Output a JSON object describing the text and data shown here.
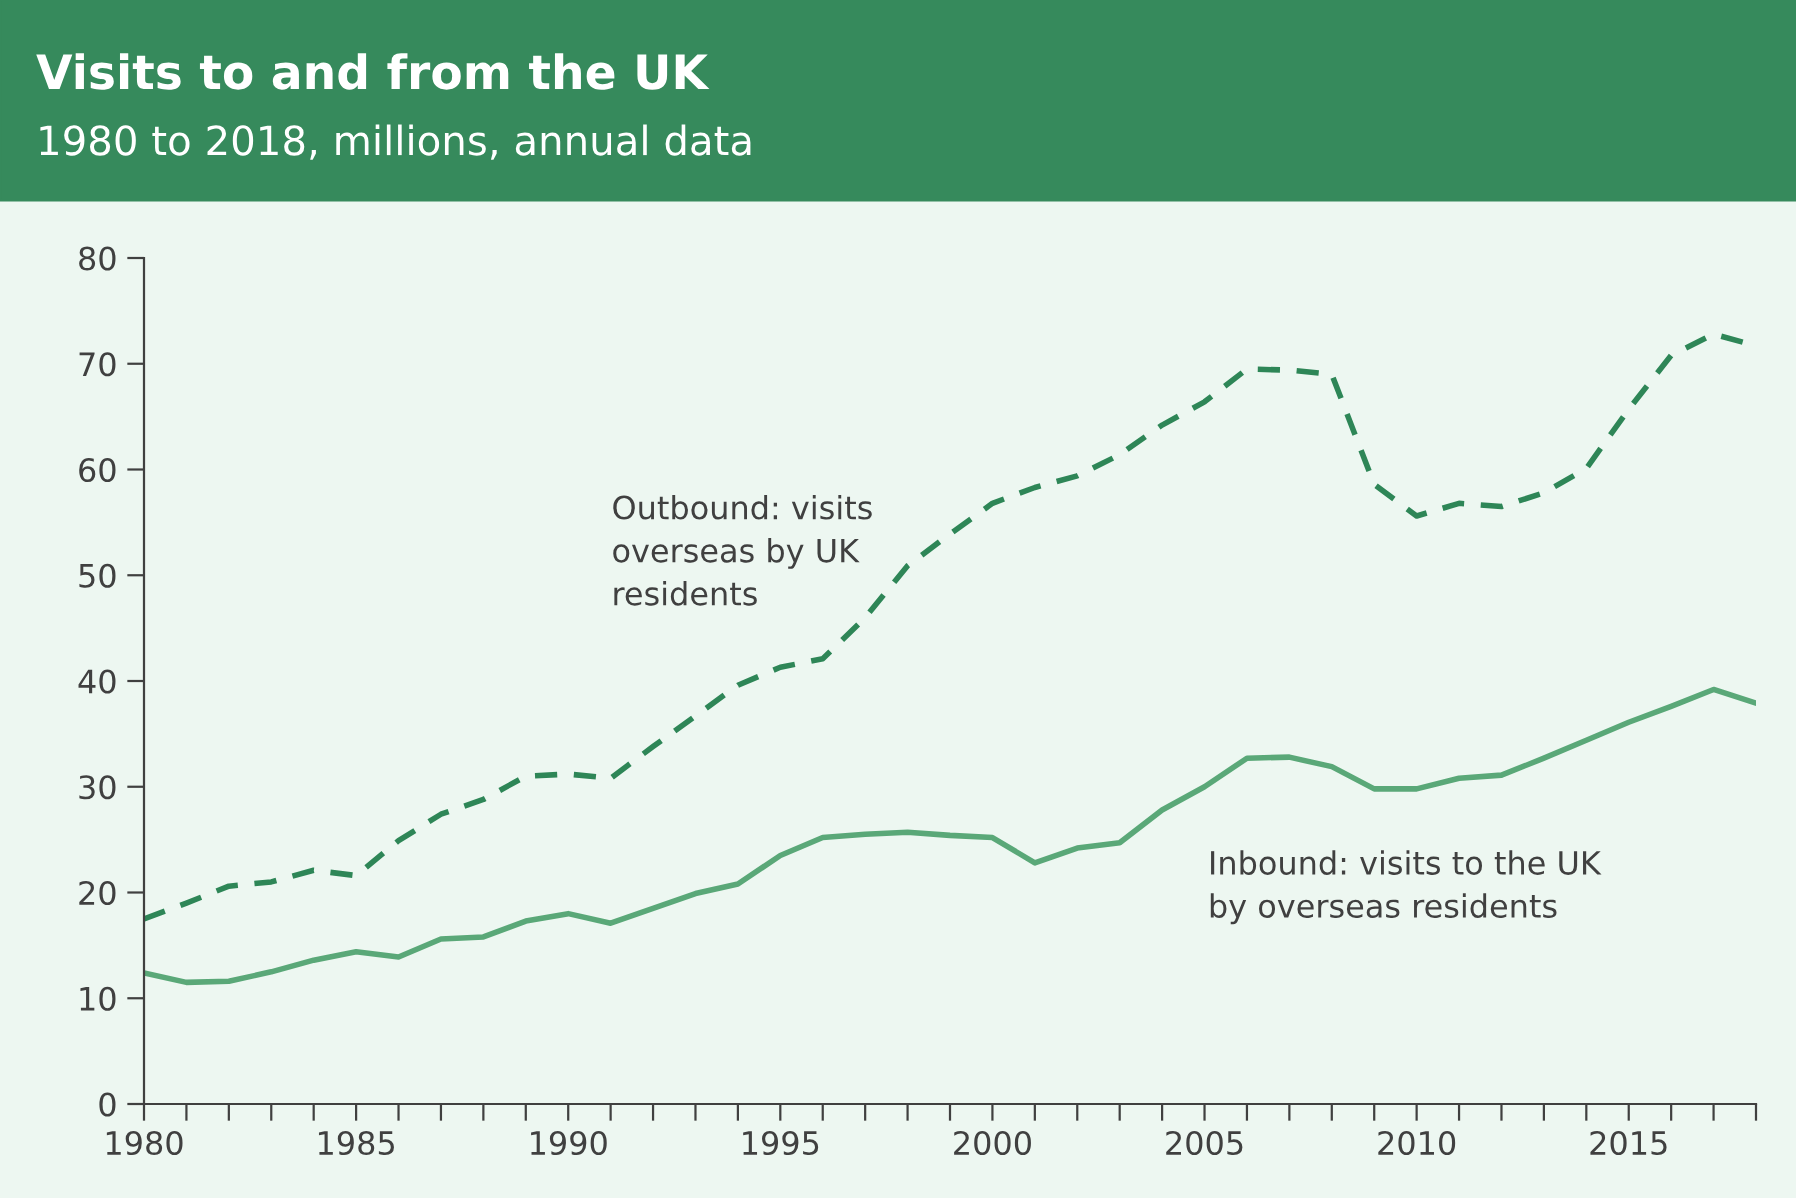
{
  "chart_data": {
    "type": "line",
    "title": "Visits to and from the UK",
    "subtitle": "1980 to 2018, millions, annual data",
    "x": [
      1980,
      1981,
      1982,
      1983,
      1984,
      1985,
      1986,
      1987,
      1988,
      1989,
      1990,
      1991,
      1992,
      1993,
      1994,
      1995,
      1996,
      1997,
      1998,
      1999,
      2000,
      2001,
      2002,
      2003,
      2004,
      2005,
      2006,
      2007,
      2008,
      2009,
      2010,
      2011,
      2012,
      2013,
      2014,
      2015,
      2016,
      2017,
      2018
    ],
    "series": [
      {
        "name": "Outbound: visits\noverseas by UK\nresidents",
        "color": "#2e8657",
        "line_style": "dashed",
        "values": [
          17.5,
          19.0,
          20.6,
          21.0,
          22.1,
          21.6,
          24.9,
          27.4,
          28.8,
          31.0,
          31.2,
          30.8,
          33.8,
          36.7,
          39.6,
          41.3,
          42.1,
          46.0,
          50.9,
          53.9,
          56.8,
          58.3,
          59.4,
          61.4,
          64.2,
          66.4,
          69.5,
          69.4,
          69.0,
          58.6,
          55.6,
          56.8,
          56.5,
          57.8,
          60.1,
          65.7,
          70.8,
          72.8,
          71.7
        ]
      },
      {
        "name": "Inbound: visits to the UK\nby overseas residents",
        "color": "#5aa878",
        "line_style": "solid",
        "values": [
          12.4,
          11.5,
          11.6,
          12.5,
          13.6,
          14.4,
          13.9,
          15.6,
          15.8,
          17.3,
          18.0,
          17.1,
          18.5,
          19.9,
          20.8,
          23.5,
          25.2,
          25.5,
          25.7,
          25.4,
          25.2,
          22.8,
          24.2,
          24.7,
          27.8,
          30.0,
          32.7,
          32.8,
          31.9,
          29.8,
          29.8,
          30.8,
          31.1,
          32.7,
          34.4,
          36.1,
          37.6,
          39.2,
          37.9
        ]
      }
    ],
    "xlim": [
      1980,
      2018
    ],
    "xticks": [
      1980,
      {
        "value": 1981,
        "label": null
      },
      {
        "value": 1982,
        "label": null
      },
      {
        "value": 1983,
        "label": null
      },
      {
        "value": 1984,
        "label": null
      },
      1985,
      {
        "value": 1986,
        "label": null
      },
      {
        "value": 1987,
        "label": null
      },
      {
        "value": 1988,
        "label": null
      },
      {
        "value": 1989,
        "label": null
      },
      1990,
      {
        "value": 1991,
        "label": null
      },
      {
        "value": 1992,
        "label": null
      },
      {
        "value": 1993,
        "label": null
      },
      {
        "value": 1994,
        "label": null
      },
      1995,
      {
        "value": 1996,
        "label": null
      },
      {
        "value": 1997,
        "label": null
      },
      {
        "value": 1998,
        "label": null
      },
      {
        "value": 1999,
        "label": null
      },
      2000,
      {
        "value": 2001,
        "label": null
      },
      {
        "value": 2002,
        "label": null
      },
      {
        "value": 2003,
        "label": null
      },
      {
        "value": 2004,
        "label": null
      },
      2005,
      {
        "value": 2006,
        "label": null
      },
      {
        "value": 2007,
        "label": null
      },
      {
        "value": 2008,
        "label": null
      },
      {
        "value": 2009,
        "label": null
      },
      2010,
      {
        "value": 2011,
        "label": null
      },
      {
        "value": 2012,
        "label": null
      },
      {
        "value": 2013,
        "label": null
      },
      {
        "value": 2014,
        "label": null
      },
      2015,
      {
        "value": 2016,
        "label": null
      },
      {
        "value": 2017,
        "label": null
      },
      {
        "value": 2018,
        "label": null
      }
    ],
    "ylim": [
      0,
      80
    ],
    "yticks": [
      0,
      10,
      20,
      30,
      40,
      50,
      60,
      70,
      80
    ],
    "grid": false,
    "legend": false,
    "marker": "none"
  }
}
